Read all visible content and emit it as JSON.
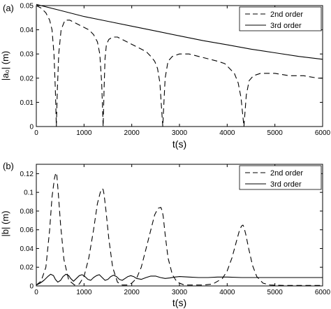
{
  "chart_data": [
    {
      "type": "line",
      "panel_label": "(a)",
      "xlabel": "t(s)",
      "ylabel": "|a₀| (m)",
      "xlim": [
        0,
        6000
      ],
      "ylim": [
        0,
        0.05
      ],
      "xticks": [
        0,
        1000,
        2000,
        3000,
        4000,
        5000,
        6000
      ],
      "xtick_labels": [
        "0",
        "1000",
        "2000",
        "3000",
        "4000",
        "5000",
        "6000"
      ],
      "yticks": [
        0,
        0.01,
        0.02,
        0.03,
        0.04,
        0.05
      ],
      "ytick_labels": [
        "0",
        "0.01",
        "0.02",
        "0.03",
        "0.04",
        "0.05"
      ],
      "legend_position": "top-right",
      "series": [
        {
          "name": "2nd order",
          "style": "dashed",
          "x": [
            0,
            100,
            200,
            280,
            330,
            370,
            400,
            420,
            440,
            470,
            520,
            600,
            700,
            800,
            900,
            1000,
            1100,
            1200,
            1280,
            1330,
            1370,
            1400,
            1420,
            1440,
            1470,
            1520,
            1600,
            1700,
            1800,
            1900,
            2000,
            2100,
            2200,
            2300,
            2400,
            2480,
            2540,
            2590,
            2630,
            2650,
            2670,
            2700,
            2760,
            2850,
            3000,
            3200,
            3400,
            3600,
            3800,
            3950,
            4050,
            4150,
            4230,
            4290,
            4330,
            4350,
            4370,
            4400,
            4460,
            4550,
            4700,
            5000,
            5300,
            5600,
            5900,
            6000
          ],
          "y": [
            0.05,
            0.049,
            0.047,
            0.044,
            0.04,
            0.03,
            0.015,
            0.0,
            0.015,
            0.03,
            0.04,
            0.044,
            0.044,
            0.043,
            0.042,
            0.041,
            0.04,
            0.038,
            0.035,
            0.03,
            0.018,
            0.0,
            0.015,
            0.028,
            0.034,
            0.036,
            0.037,
            0.037,
            0.036,
            0.035,
            0.034,
            0.033,
            0.032,
            0.031,
            0.029,
            0.027,
            0.024,
            0.018,
            0.006,
            0.0,
            0.008,
            0.02,
            0.027,
            0.029,
            0.03,
            0.03,
            0.029,
            0.028,
            0.027,
            0.026,
            0.024,
            0.022,
            0.018,
            0.012,
            0.004,
            0.0,
            0.005,
            0.013,
            0.019,
            0.021,
            0.022,
            0.022,
            0.021,
            0.021,
            0.02,
            0.02
          ]
        },
        {
          "name": "3rd order",
          "style": "solid",
          "x": [
            0,
            500,
            1000,
            1500,
            2000,
            2500,
            3000,
            3500,
            4000,
            4500,
            5000,
            5500,
            6000
          ],
          "y": [
            0.0505,
            0.048,
            0.0455,
            0.0435,
            0.0415,
            0.0395,
            0.0375,
            0.0355,
            0.0338,
            0.032,
            0.0305,
            0.029,
            0.0278
          ]
        }
      ]
    },
    {
      "type": "line",
      "panel_label": "(b)",
      "xlabel": "t(s)",
      "ylabel": "|b| (m)",
      "xlim": [
        0,
        6000
      ],
      "ylim": [
        0,
        0.13
      ],
      "xticks": [
        0,
        1000,
        2000,
        3000,
        4000,
        5000,
        6000
      ],
      "xtick_labels": [
        "0",
        "1000",
        "2000",
        "3000",
        "4000",
        "5000",
        "6000"
      ],
      "yticks": [
        0,
        0.02,
        0.04,
        0.06,
        0.08,
        0.1,
        0.12
      ],
      "ytick_labels": [
        "0",
        "0.02",
        "0.04",
        "0.06",
        "0.08",
        "0.1",
        "0.12"
      ],
      "legend_position": "top-right",
      "series": [
        {
          "name": "2nd order",
          "style": "dashed",
          "x": [
            0,
            100,
            200,
            280,
            330,
            380,
            410,
            430,
            460,
            510,
            580,
            680,
            800,
            900,
            1000,
            1100,
            1200,
            1280,
            1340,
            1380,
            1400,
            1420,
            1460,
            1520,
            1600,
            1700,
            1800,
            1900,
            2000,
            2100,
            2200,
            2300,
            2400,
            2480,
            2550,
            2610,
            2640,
            2660,
            2700,
            2760,
            2850,
            2950,
            3100,
            3300,
            3500,
            3700,
            3900,
            4000,
            4100,
            4180,
            4250,
            4300,
            4330,
            4350,
            4390,
            4450,
            4530,
            4620,
            4750,
            4900,
            5200,
            5600,
            6000
          ],
          "y": [
            0.001,
            0.005,
            0.02,
            0.06,
            0.095,
            0.115,
            0.121,
            0.118,
            0.1,
            0.065,
            0.028,
            0.006,
            0.001,
            0.002,
            0.01,
            0.03,
            0.06,
            0.088,
            0.1,
            0.104,
            0.103,
            0.098,
            0.08,
            0.05,
            0.02,
            0.004,
            0.001,
            0.001,
            0.003,
            0.008,
            0.02,
            0.04,
            0.06,
            0.076,
            0.083,
            0.084,
            0.08,
            0.074,
            0.055,
            0.03,
            0.012,
            0.004,
            0.001,
            0.001,
            0.001,
            0.002,
            0.008,
            0.016,
            0.03,
            0.045,
            0.058,
            0.064,
            0.065,
            0.063,
            0.055,
            0.04,
            0.022,
            0.01,
            0.003,
            0.001,
            0.0005,
            0.0005,
            0.0005
          ]
        },
        {
          "name": "3rd order",
          "style": "solid",
          "x": [
            0,
            80,
            160,
            240,
            300,
            360,
            400,
            450,
            510,
            560,
            620,
            680,
            720,
            780,
            840,
            900,
            960,
            1020,
            1080,
            1140,
            1200,
            1260,
            1320,
            1380,
            1440,
            1500,
            1560,
            1620,
            1680,
            1740,
            1800,
            1860,
            1920,
            1980,
            2040,
            2100,
            2200,
            2300,
            2400,
            2500,
            2600,
            2700,
            2800,
            2900,
            3000,
            3200,
            3400,
            3600,
            3800,
            4000,
            4300,
            4600,
            5000,
            5500,
            6000
          ],
          "y": [
            0.001,
            0.003,
            0.006,
            0.01,
            0.0125,
            0.011,
            0.007,
            0.004,
            0.006,
            0.01,
            0.0125,
            0.011,
            0.008,
            0.005,
            0.008,
            0.011,
            0.012,
            0.01,
            0.007,
            0.006,
            0.009,
            0.011,
            0.012,
            0.009,
            0.006,
            0.007,
            0.01,
            0.0115,
            0.01,
            0.007,
            0.006,
            0.008,
            0.01,
            0.011,
            0.01,
            0.008,
            0.007,
            0.009,
            0.0105,
            0.0105,
            0.009,
            0.008,
            0.0085,
            0.0095,
            0.01,
            0.0095,
            0.009,
            0.009,
            0.0095,
            0.0095,
            0.009,
            0.009,
            0.009,
            0.009,
            0.009
          ]
        }
      ]
    }
  ]
}
